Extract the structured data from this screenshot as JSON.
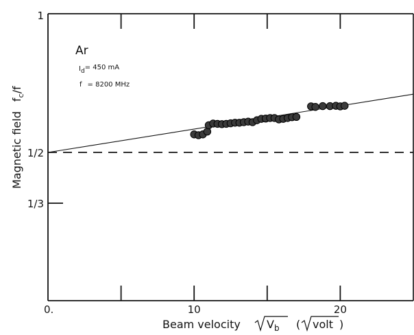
{
  "chart_data": {
    "type": "scatter",
    "title": "",
    "xlabel": "Beam velocity",
    "xlabel_sqrt": "V",
    "xlabel_sub": "b",
    "xlabel_unit_open": "(",
    "xlabel_unit_sqrt": "volt",
    "xlabel_unit_close": ")",
    "ylabel": "Magnetic field",
    "ylabel_ratio": "f",
    "ylabel_ratio_sub": "c",
    "ylabel_ratio_tail": "/f",
    "xlim": [
      0,
      25
    ],
    "ylim": [
      0.25,
      1.0
    ],
    "x_ticks": [
      {
        "value": 0,
        "label": "0."
      },
      {
        "value": 10,
        "label": "10"
      },
      {
        "value": 20,
        "label": "20"
      }
    ],
    "x_minor_ticks": [
      5,
      15
    ],
    "y_ticks": [
      {
        "value": 1.0,
        "label": "1"
      },
      {
        "value": 0.5,
        "label": "1/2"
      },
      {
        "value": 0.3333,
        "label": "1/3"
      }
    ],
    "annotations": {
      "gas": "Ar",
      "current_label": "I",
      "current_sub": "d",
      "current_value": "= 450 mA",
      "freq_label": "f",
      "freq_value": "= 8200 MHz"
    },
    "reference_line": {
      "y": 0.5,
      "style": "dashed"
    },
    "fit_line": {
      "x": [
        0,
        25
      ],
      "y": [
        0.5,
        0.71
      ]
    },
    "series": [
      {
        "style": "filled-circle",
        "x": [
          10.0,
          10.3,
          10.6,
          10.9,
          11.0,
          11.3,
          11.6,
          11.9,
          12.2,
          12.5,
          12.8,
          13.1,
          13.4,
          13.7,
          14.0,
          14.3,
          14.6,
          14.9,
          15.2,
          15.5,
          15.8,
          16.1,
          16.4,
          16.7,
          17.0,
          18.0,
          18.3,
          18.8,
          19.3,
          19.7,
          20.0,
          20.3
        ],
        "y": [
          0.565,
          0.562,
          0.565,
          0.575,
          0.598,
          0.604,
          0.603,
          0.602,
          0.603,
          0.605,
          0.607,
          0.607,
          0.609,
          0.611,
          0.609,
          0.616,
          0.621,
          0.622,
          0.624,
          0.624,
          0.619,
          0.621,
          0.624,
          0.627,
          0.628,
          0.666,
          0.664,
          0.667,
          0.667,
          0.668,
          0.666,
          0.668
        ]
      }
    ]
  }
}
